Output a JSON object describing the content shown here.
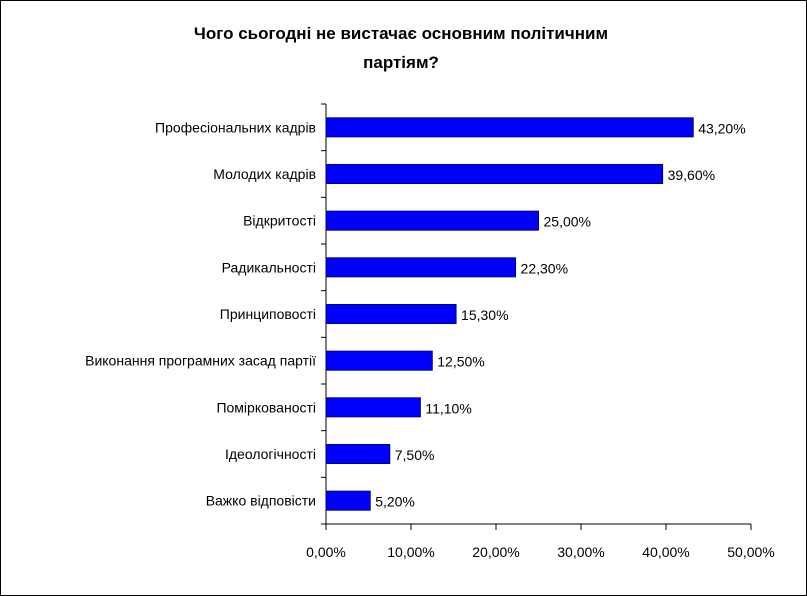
{
  "chart_data": {
    "type": "bar",
    "orientation": "horizontal",
    "title": [
      "Чого сьогодні не вистачає основним політичним",
      "партіям?"
    ],
    "xlabel": "",
    "ylabel": "",
    "categories": [
      "Професіональних кадрів",
      "Молодих кадрів",
      "Відкритості",
      "Радикальності",
      "Принциповості",
      "Виконання програмних засад партії",
      "Поміркованості",
      "Ідеологічності",
      "Важко відповісти"
    ],
    "values": [
      43.2,
      39.6,
      25.0,
      22.3,
      15.3,
      12.5,
      11.1,
      7.5,
      5.2
    ],
    "data_labels": [
      "43,20%",
      "39,60%",
      "25,00%",
      "22,30%",
      "15,30%",
      "12,50%",
      "11,10%",
      "7,50%",
      "5,20%"
    ],
    "xlim": [
      0,
      50
    ],
    "xticks": [
      0,
      10,
      20,
      30,
      40,
      50
    ],
    "xtick_labels": [
      "0,00%",
      "10,00%",
      "20,00%",
      "30,00%",
      "40,00%",
      "50,00%"
    ],
    "bar_color": "#0000FF",
    "bar_edge_color": "#000080",
    "grid": false,
    "legend": "none"
  }
}
